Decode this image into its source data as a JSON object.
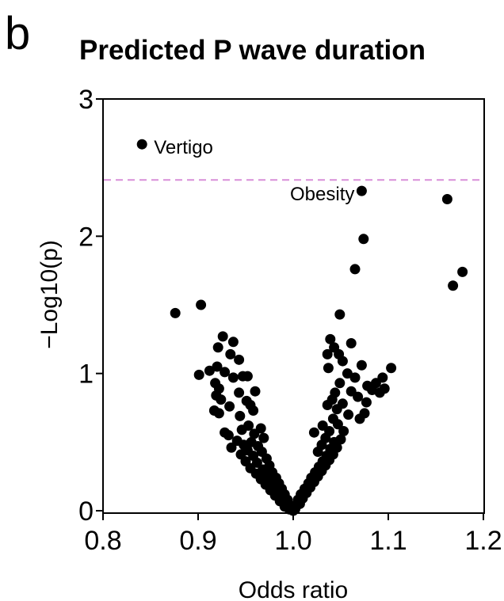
{
  "panel_letter": "b",
  "chart_data": {
    "type": "scatter",
    "title": "Predicted P wave duration",
    "xlabel": "Odds ratio",
    "ylabel": "−Log10(p)",
    "xlim": [
      0.8,
      1.2
    ],
    "ylim": [
      0,
      3
    ],
    "xticks": [
      0.8,
      0.9,
      1.0,
      1.1,
      1.2
    ],
    "xtick_labels": [
      "0.8",
      "0.9",
      "1.0",
      "1.1",
      "1.2"
    ],
    "yticks": [
      0,
      1,
      2,
      3
    ],
    "ytick_labels": [
      "0",
      "1",
      "2",
      "3"
    ],
    "grid": false,
    "threshold": {
      "y": 2.41,
      "style": "dashed",
      "color": "#d98fd9"
    },
    "point_color": "#000000",
    "annotations": [
      {
        "text": "Vertigo",
        "x": 0.841,
        "y": 2.67,
        "side": "right"
      },
      {
        "text": "Obesity",
        "x": 1.072,
        "y": 2.33,
        "side": "left"
      }
    ],
    "points": [
      {
        "x": 0.841,
        "y": 2.67
      },
      {
        "x": 1.072,
        "y": 2.33
      },
      {
        "x": 1.162,
        "y": 2.27
      },
      {
        "x": 1.074,
        "y": 1.98
      },
      {
        "x": 1.065,
        "y": 1.76
      },
      {
        "x": 1.178,
        "y": 1.74
      },
      {
        "x": 1.168,
        "y": 1.64
      },
      {
        "x": 0.903,
        "y": 1.5
      },
      {
        "x": 0.876,
        "y": 1.44
      },
      {
        "x": 1.049,
        "y": 1.43
      },
      {
        "x": 0.926,
        "y": 1.27
      },
      {
        "x": 0.937,
        "y": 1.23
      },
      {
        "x": 0.921,
        "y": 1.19
      },
      {
        "x": 0.934,
        "y": 1.14
      },
      {
        "x": 0.943,
        "y": 1.1
      },
      {
        "x": 0.92,
        "y": 1.05
      },
      {
        "x": 0.912,
        "y": 1.02
      },
      {
        "x": 0.928,
        "y": 1.01
      },
      {
        "x": 0.901,
        "y": 0.99
      },
      {
        "x": 0.947,
        "y": 0.98
      },
      {
        "x": 0.952,
        "y": 0.98
      },
      {
        "x": 0.937,
        "y": 0.97
      },
      {
        "x": 0.918,
        "y": 0.93
      },
      {
        "x": 0.922,
        "y": 0.89
      },
      {
        "x": 0.96,
        "y": 0.87
      },
      {
        "x": 0.943,
        "y": 0.86
      },
      {
        "x": 0.919,
        "y": 0.84
      },
      {
        "x": 0.924,
        "y": 0.81
      },
      {
        "x": 0.951,
        "y": 0.8
      },
      {
        "x": 0.933,
        "y": 0.76
      },
      {
        "x": 0.955,
        "y": 0.77
      },
      {
        "x": 0.917,
        "y": 0.73
      },
      {
        "x": 0.958,
        "y": 0.73
      },
      {
        "x": 0.922,
        "y": 0.71
      },
      {
        "x": 0.944,
        "y": 0.69
      },
      {
        "x": 0.953,
        "y": 0.62
      },
      {
        "x": 0.966,
        "y": 0.6
      },
      {
        "x": 0.946,
        "y": 0.59
      },
      {
        "x": 0.928,
        "y": 0.57
      },
      {
        "x": 0.959,
        "y": 0.56
      },
      {
        "x": 0.932,
        "y": 0.55
      },
      {
        "x": 0.969,
        "y": 0.53
      },
      {
        "x": 0.941,
        "y": 0.51
      },
      {
        "x": 0.956,
        "y": 0.5
      },
      {
        "x": 0.948,
        "y": 0.48
      },
      {
        "x": 0.963,
        "y": 0.47
      },
      {
        "x": 0.935,
        "y": 0.46
      },
      {
        "x": 0.952,
        "y": 0.44
      },
      {
        "x": 0.967,
        "y": 0.43
      },
      {
        "x": 0.945,
        "y": 0.41
      },
      {
        "x": 0.958,
        "y": 0.4
      },
      {
        "x": 0.972,
        "y": 0.38
      },
      {
        "x": 0.95,
        "y": 0.36
      },
      {
        "x": 0.962,
        "y": 0.35
      },
      {
        "x": 0.975,
        "y": 0.33
      },
      {
        "x": 0.955,
        "y": 0.31
      },
      {
        "x": 0.968,
        "y": 0.3
      },
      {
        "x": 0.978,
        "y": 0.28
      },
      {
        "x": 0.961,
        "y": 0.27
      },
      {
        "x": 0.973,
        "y": 0.26
      },
      {
        "x": 0.982,
        "y": 0.24
      },
      {
        "x": 0.966,
        "y": 0.23
      },
      {
        "x": 0.977,
        "y": 0.22
      },
      {
        "x": 0.985,
        "y": 0.2
      },
      {
        "x": 0.971,
        "y": 0.19
      },
      {
        "x": 0.981,
        "y": 0.18
      },
      {
        "x": 0.988,
        "y": 0.16
      },
      {
        "x": 0.976,
        "y": 0.15
      },
      {
        "x": 0.985,
        "y": 0.13
      },
      {
        "x": 0.991,
        "y": 0.12
      },
      {
        "x": 0.981,
        "y": 0.11
      },
      {
        "x": 0.989,
        "y": 0.1
      },
      {
        "x": 0.994,
        "y": 0.08
      },
      {
        "x": 0.986,
        "y": 0.07
      },
      {
        "x": 0.993,
        "y": 0.06
      },
      {
        "x": 0.997,
        "y": 0.04
      },
      {
        "x": 0.991,
        "y": 0.03
      },
      {
        "x": 0.999,
        "y": 0.02
      },
      {
        "x": 1.0,
        "y": 0.0
      },
      {
        "x": 1.002,
        "y": 0.01
      },
      {
        "x": 0.996,
        "y": 0.01
      },
      {
        "x": 1.003,
        "y": 0.03
      },
      {
        "x": 1.007,
        "y": 0.05
      },
      {
        "x": 1.005,
        "y": 0.08
      },
      {
        "x": 1.01,
        "y": 0.09
      },
      {
        "x": 1.008,
        "y": 0.12
      },
      {
        "x": 1.014,
        "y": 0.13
      },
      {
        "x": 1.012,
        "y": 0.16
      },
      {
        "x": 1.018,
        "y": 0.17
      },
      {
        "x": 1.016,
        "y": 0.2
      },
      {
        "x": 1.022,
        "y": 0.21
      },
      {
        "x": 1.019,
        "y": 0.24
      },
      {
        "x": 1.026,
        "y": 0.25
      },
      {
        "x": 1.023,
        "y": 0.28
      },
      {
        "x": 1.03,
        "y": 0.29
      },
      {
        "x": 1.027,
        "y": 0.32
      },
      {
        "x": 1.034,
        "y": 0.33
      },
      {
        "x": 1.031,
        "y": 0.36
      },
      {
        "x": 1.038,
        "y": 0.37
      },
      {
        "x": 1.035,
        "y": 0.4
      },
      {
        "x": 1.042,
        "y": 0.41
      },
      {
        "x": 1.026,
        "y": 0.43
      },
      {
        "x": 1.039,
        "y": 0.45
      },
      {
        "x": 1.046,
        "y": 0.46
      },
      {
        "x": 1.03,
        "y": 0.48
      },
      {
        "x": 1.043,
        "y": 0.5
      },
      {
        "x": 1.034,
        "y": 0.53
      },
      {
        "x": 1.05,
        "y": 0.52
      },
      {
        "x": 1.022,
        "y": 0.57
      },
      {
        "x": 1.038,
        "y": 0.58
      },
      {
        "x": 1.053,
        "y": 0.58
      },
      {
        "x": 1.031,
        "y": 0.62
      },
      {
        "x": 1.047,
        "y": 0.63
      },
      {
        "x": 1.042,
        "y": 0.67
      },
      {
        "x": 1.07,
        "y": 0.67
      },
      {
        "x": 1.058,
        "y": 0.7
      },
      {
        "x": 1.075,
        "y": 0.71
      },
      {
        "x": 1.046,
        "y": 0.74
      },
      {
        "x": 1.036,
        "y": 0.77
      },
      {
        "x": 1.052,
        "y": 0.78
      },
      {
        "x": 1.077,
        "y": 0.79
      },
      {
        "x": 1.041,
        "y": 0.81
      },
      {
        "x": 1.068,
        "y": 0.83
      },
      {
        "x": 1.044,
        "y": 0.86
      },
      {
        "x": 1.091,
        "y": 0.86
      },
      {
        "x": 1.061,
        "y": 0.87
      },
      {
        "x": 1.083,
        "y": 0.88
      },
      {
        "x": 1.096,
        "y": 0.89
      },
      {
        "x": 1.078,
        "y": 0.91
      },
      {
        "x": 1.049,
        "y": 0.93
      },
      {
        "x": 1.087,
        "y": 0.93
      },
      {
        "x": 1.065,
        "y": 0.97
      },
      {
        "x": 1.094,
        "y": 0.97
      },
      {
        "x": 1.057,
        "y": 1.0
      },
      {
        "x": 1.103,
        "y": 1.04
      },
      {
        "x": 1.037,
        "y": 1.04
      },
      {
        "x": 1.072,
        "y": 1.06
      },
      {
        "x": 1.052,
        "y": 1.09
      },
      {
        "x": 1.036,
        "y": 1.14
      },
      {
        "x": 1.048,
        "y": 1.14
      },
      {
        "x": 1.043,
        "y": 1.19
      },
      {
        "x": 1.061,
        "y": 1.22
      },
      {
        "x": 1.039,
        "y": 1.25
      }
    ]
  }
}
